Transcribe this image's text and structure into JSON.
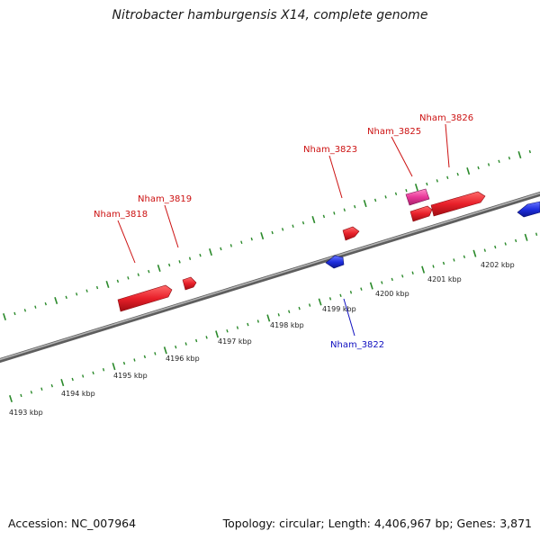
{
  "title": "Nitrobacter hamburgensis X14, complete genome",
  "footer": {
    "accession": "Accession: NC_007964",
    "summary": "Topology: circular; Length: 4,406,967 bp; Genes: 3,871"
  },
  "colors": {
    "forward_gene": "#e8202a",
    "reverse_gene": "#1f2fe0",
    "highlight_gene": "#e8389a",
    "forward_label": "#cc1111",
    "reverse_label": "#1010c0",
    "scale_ticks": "#2b8a2b",
    "backbone": "#7a7a7a"
  },
  "scale": {
    "unit": "kbp",
    "labels": [
      "4193 kbp",
      "4194 kbp",
      "4195 kbp",
      "4196 kbp",
      "4197 kbp",
      "4198 kbp",
      "4199 kbp",
      "4200 kbp",
      "4201 kbp",
      "4202 kbp"
    ]
  },
  "genes": [
    {
      "id": "gene-nham-3818",
      "label": "Nham_3818",
      "strand": "forward"
    },
    {
      "id": "gene-nham-3819",
      "label": "Nham_3819",
      "strand": "forward"
    },
    {
      "id": "gene-nham-3823",
      "label": "Nham_3823",
      "strand": "forward"
    },
    {
      "id": "gene-nham-3825",
      "label": "Nham_3825",
      "strand": "forward"
    },
    {
      "id": "gene-nham-3826",
      "label": "Nham_3826",
      "strand": "forward"
    },
    {
      "id": "gene-nham-3822",
      "label": "Nham_3822",
      "strand": "reverse"
    }
  ]
}
